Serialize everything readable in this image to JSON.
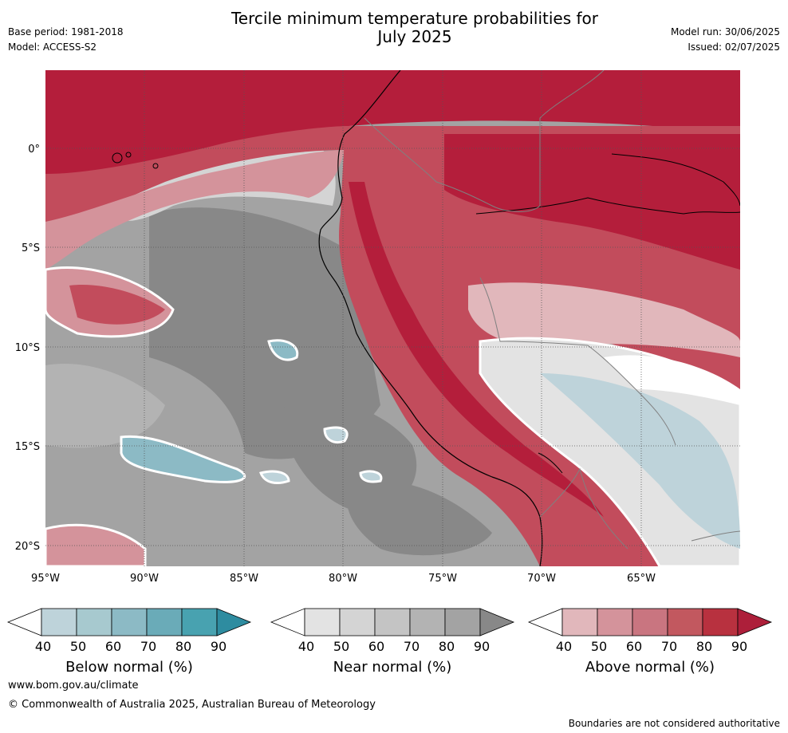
{
  "header": {
    "title_line1": "Tercile minimum temperature probabilities for",
    "title_line2": "July 2025",
    "base_period": "Base period: 1981-2018",
    "model": "Model: ACCESS-S2",
    "model_run": "Model run: 30/06/2025",
    "issued": "Issued: 02/07/2025"
  },
  "map": {
    "lat_labels": [
      "0°",
      "5°S",
      "10°S",
      "15°S",
      "20°S"
    ],
    "lon_labels": [
      "95°W",
      "90°W",
      "85°W",
      "80°W",
      "75°W",
      "70°W",
      "65°W"
    ],
    "lon_range": [
      -95,
      -60
    ],
    "lat_range": [
      -21,
      4
    ],
    "colors": {
      "ocean_near_light": "#d4d4d4",
      "ocean_near_mid": "#a3a3a3",
      "ocean_near_dark": "#888888",
      "above_dark": "#b41e3b",
      "above_mid": "#c24c5c",
      "above_light": "#d4939b",
      "above_vlight": "#e1b7bb",
      "below_light": "#bed3da",
      "below_mid": "#8cbac5",
      "neutral": "#ffffff",
      "grid": "#555555",
      "coast": "#000000",
      "border": "#808080"
    }
  },
  "colorbars": [
    {
      "title": "Below normal (%)",
      "ticks": [
        "40",
        "50",
        "60",
        "70",
        "80",
        "90"
      ],
      "colors": [
        "#bed3da",
        "#a7c9cf",
        "#8cbac5",
        "#6aabb8",
        "#48a2b0",
        "#2e8ca0"
      ]
    },
    {
      "title": "Near normal (%)",
      "ticks": [
        "40",
        "50",
        "60",
        "70",
        "80",
        "90"
      ],
      "colors": [
        "#e3e3e3",
        "#d4d4d4",
        "#c4c4c4",
        "#b3b3b3",
        "#a3a3a3",
        "#888888"
      ]
    },
    {
      "title": "Above normal (%)",
      "ticks": [
        "40",
        "50",
        "60",
        "70",
        "80",
        "90"
      ],
      "colors": [
        "#e1b7bb",
        "#d4939b",
        "#c97580",
        "#c2585f",
        "#b8313f",
        "#ad1f3a"
      ]
    }
  ],
  "footer": {
    "url": "www.bom.gov.au/climate",
    "copyright": "© Commonwealth of Australia 2025, Australian Bureau of Meteorology",
    "disclaimer": "Boundaries are not considered authoritative"
  }
}
